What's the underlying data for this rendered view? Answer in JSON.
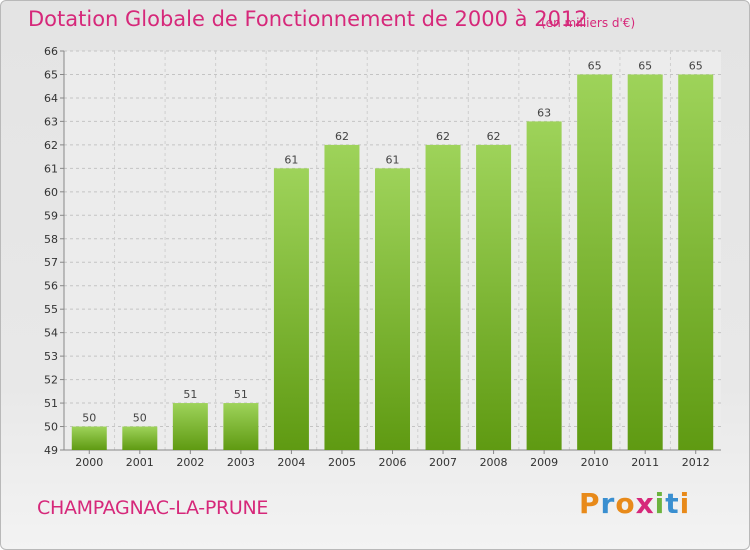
{
  "header": {
    "title": "Dotation Globale de Fonctionnement de 2000 à 2012",
    "unit": "(en milliers d'€)"
  },
  "footer": {
    "commune": "CHAMPAGNAC-LA-PRUNE",
    "logo": [
      "P",
      "r",
      "o",
      "x",
      "i",
      "t",
      "i"
    ],
    "logo_colors": [
      "#e88a1a",
      "#3a8fd0",
      "#e88a1a",
      "#d6287a",
      "#6cb33e",
      "#3a8fd0",
      "#e88a1a"
    ]
  },
  "chart_data": {
    "type": "bar",
    "title": "Dotation Globale de Fonctionnement de 2000 à 2012",
    "categories": [
      "2000",
      "2001",
      "2002",
      "2003",
      "2004",
      "2005",
      "2006",
      "2007",
      "2008",
      "2009",
      "2010",
      "2011",
      "2012"
    ],
    "values": [
      50,
      50,
      51,
      51,
      61,
      62,
      61,
      62,
      62,
      63,
      65,
      65,
      65
    ],
    "ylim": [
      49,
      66
    ],
    "yticks": [
      49,
      50,
      51,
      52,
      53,
      54,
      55,
      56,
      57,
      58,
      59,
      60,
      61,
      62,
      63,
      64,
      65,
      66
    ],
    "grid": true,
    "colors": {
      "bar_top": "#9ed35a",
      "bar_bottom": "#5f9a12"
    }
  }
}
